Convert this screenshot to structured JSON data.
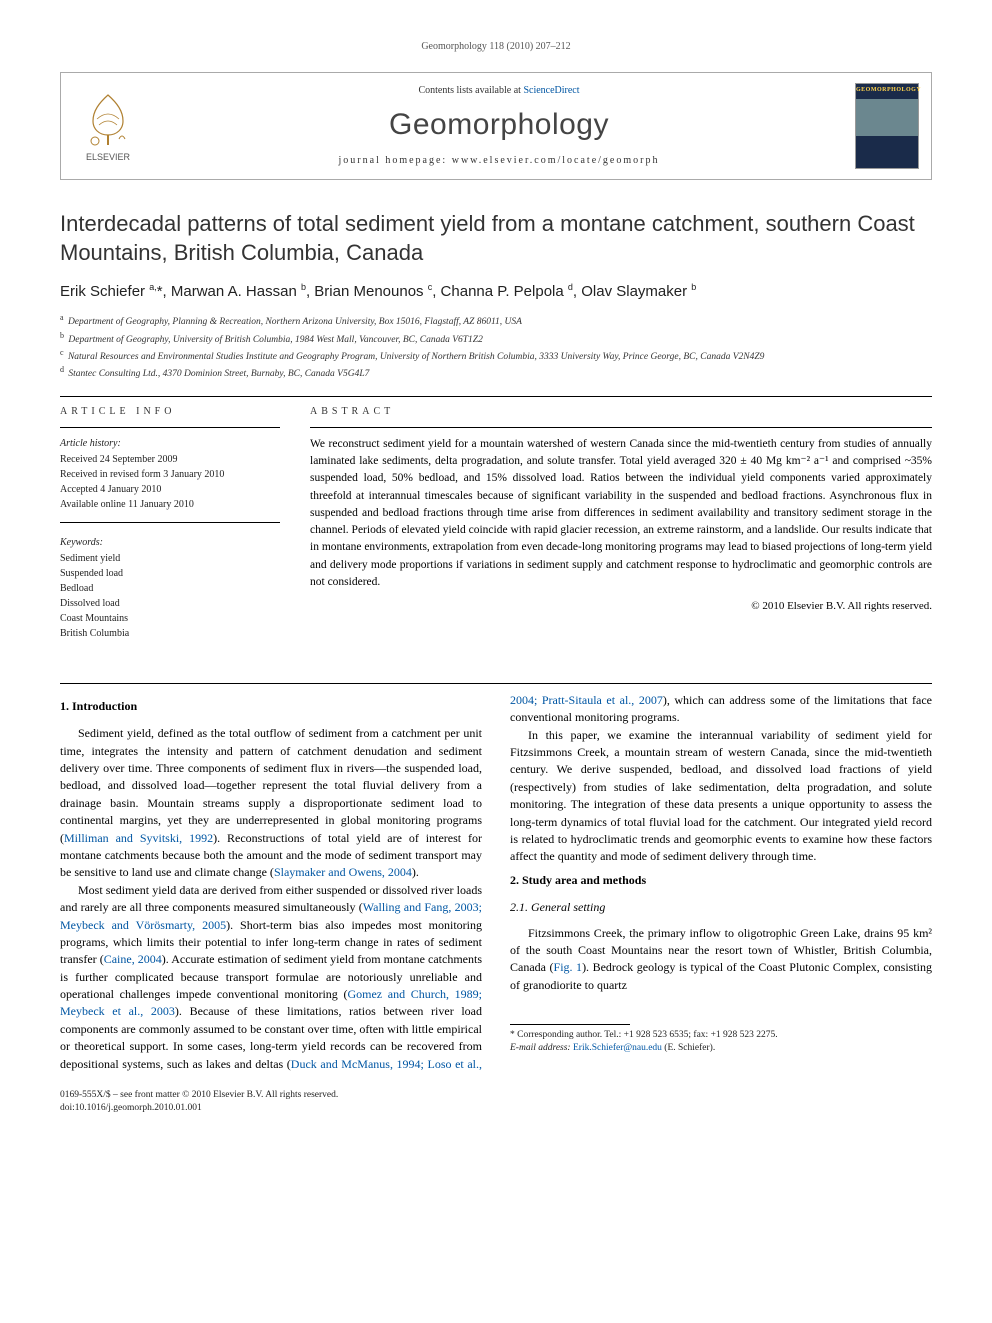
{
  "running_header": "Geomorphology 118 (2010) 207–212",
  "masthead": {
    "contents_line_prefix": "Contents lists available at ",
    "contents_line_link": "ScienceDirect",
    "journal_title": "Geomorphology",
    "homepage_prefix": "journal homepage: ",
    "homepage_url": "www.elsevier.com/locate/geomorph",
    "publisher_label": "ELSEVIER",
    "cover_label": "GEOMORPHOLOGY"
  },
  "article": {
    "title": "Interdecadal patterns of total sediment yield from a montane catchment, southern Coast Mountains, British Columbia, Canada",
    "authors_html": "Erik Schiefer <sup>a,</sup>*, Marwan A. Hassan <sup>b</sup>, Brian Menounos <sup>c</sup>, Channa P. Pelpola <sup>d</sup>, Olav Slaymaker <sup>b</sup>",
    "affiliations": [
      {
        "sup": "a",
        "text": "Department of Geography, Planning & Recreation, Northern Arizona University, Box 15016, Flagstaff, AZ 86011, USA"
      },
      {
        "sup": "b",
        "text": "Department of Geography, University of British Columbia, 1984 West Mall, Vancouver, BC, Canada V6T1Z2"
      },
      {
        "sup": "c",
        "text": "Natural Resources and Environmental Studies Institute and Geography Program, University of Northern British Columbia, 3333 University Way, Prince George, BC, Canada V2N4Z9"
      },
      {
        "sup": "d",
        "text": "Stantec Consulting Ltd., 4370 Dominion Street, Burnaby, BC, Canada V5G4L7"
      }
    ]
  },
  "info": {
    "heading": "article info",
    "history_label": "Article history:",
    "history": [
      "Received 24 September 2009",
      "Received in revised form 3 January 2010",
      "Accepted 4 January 2010",
      "Available online 11 January 2010"
    ],
    "keywords_label": "Keywords:",
    "keywords": [
      "Sediment yield",
      "Suspended load",
      "Bedload",
      "Dissolved load",
      "Coast Mountains",
      "British Columbia"
    ]
  },
  "abstract": {
    "heading": "abstract",
    "body": "We reconstruct sediment yield for a mountain watershed of western Canada since the mid-twentieth century from studies of annually laminated lake sediments, delta progradation, and solute transfer. Total yield averaged 320 ± 40 Mg km⁻² a⁻¹ and comprised ~35% suspended load, 50% bedload, and 15% dissolved load. Ratios between the individual yield components varied approximately threefold at interannual timescales because of significant variability in the suspended and bedload fractions. Asynchronous flux in suspended and bedload fractions through time arise from differences in sediment availability and transitory sediment storage in the channel. Periods of elevated yield coincide with rapid glacier recession, an extreme rainstorm, and a landslide. Our results indicate that in montane environments, extrapolation from even decade-long monitoring programs may lead to biased projections of long-term yield and delivery mode proportions if variations in sediment supply and catchment response to hydroclimatic and geomorphic controls are not considered.",
    "copyright": "© 2010 Elsevier B.V. All rights reserved."
  },
  "body": {
    "s1_heading": "1. Introduction",
    "s1_p1_a": "Sediment yield, defined as the total outflow of sediment from a catchment per unit time, integrates the intensity and pattern of catchment denudation and sediment delivery over time. Three components of sediment flux in rivers—the suspended load, bedload, and dissolved load—together represent the total fluvial delivery from a drainage basin. Mountain streams supply a disproportionate sediment load to continental margins, yet they are underrepresented in global monitoring programs (",
    "s1_p1_ref1": "Milliman and Syvitski, 1992",
    "s1_p1_b": "). Reconstructions of total yield are of interest for montane catchments because both the amount and the mode of sediment transport may be sensitive to land use and climate change (",
    "s1_p1_ref2": "Slaymaker and Owens, 2004",
    "s1_p1_c": ").",
    "s1_p2_a": "Most sediment yield data are derived from either suspended or dissolved river loads and rarely are all three components measured simultaneously (",
    "s1_p2_ref1": "Walling and Fang, 2003; Meybeck and Vörösmarty, 2005",
    "s1_p2_b": "). Short-term bias also impedes most monitoring programs, which limits their potential to infer long-term change in rates of sediment transfer (",
    "s1_p2_ref2": "Caine, 2004",
    "s1_p2_c": "). Accurate estimation of sediment yield from montane catchments is further complicated because transport formulae are notoriously unreliable and operational challenges impede conventional monitoring (",
    "s1_p2_ref3": "Gomez and Church, 1989; Meybeck et al., 2003",
    "s1_p2_d": "). Because of these limitations, ratios between river load components are commonly assumed to be constant over time, often with little empirical or theoretical support. In some cases, long-term yield records can be recovered from depositional systems, such as lakes and deltas (",
    "s1_p2_ref4": "Duck and McManus, 1994; Loso et al., 2004; Pratt-Sitaula et al., 2007",
    "s1_p2_e": "), which can address some of the limitations that face conventional monitoring programs.",
    "s1_p3": "In this paper, we examine the interannual variability of sediment yield for Fitzsimmons Creek, a mountain stream of western Canada, since the mid-twentieth century. We derive suspended, bedload, and dissolved load fractions of yield (respectively) from studies of lake sedimentation, delta progradation, and solute monitoring. The integration of these data presents a unique opportunity to assess the long-term dynamics of total fluvial load for the catchment. Our integrated yield record is related to hydroclimatic trends and geomorphic events to examine how these factors affect the quantity and mode of sediment delivery through time.",
    "s2_heading": "2. Study area and methods",
    "s2_1_heading": "2.1. General setting",
    "s2_1_p1_a": "Fitzsimmons Creek, the primary inflow to oligotrophic Green Lake, drains 95 km² of the south Coast Mountains near the resort town of Whistler, British Columbia, Canada (",
    "s2_1_p1_ref1": "Fig. 1",
    "s2_1_p1_b": "). Bedrock geology is typical of the Coast Plutonic Complex, consisting of granodiorite to quartz"
  },
  "footnotes": {
    "corr_a": "* Corresponding author. Tel.: +1 928 523 6535; fax: +1 928 523 2275.",
    "corr_b_label": "E-mail address: ",
    "corr_b_email": "Erik.Schiefer@nau.edu",
    "corr_b_tail": " (E. Schiefer)."
  },
  "footer": {
    "line1": "0169-555X/$ – see front matter © 2010 Elsevier B.V. All rights reserved.",
    "line2": "doi:10.1016/j.geomorph.2010.01.001"
  },
  "colors": {
    "link": "#0056a3",
    "text": "#000000",
    "muted": "#555555"
  }
}
